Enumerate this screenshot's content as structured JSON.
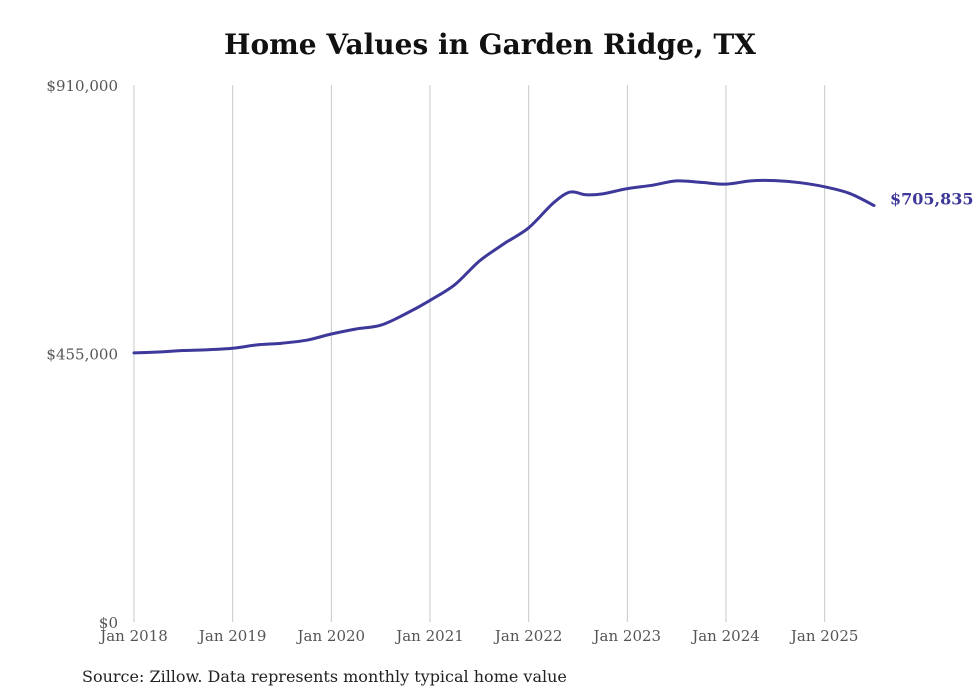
{
  "title": "Home Values in Garden Ridge, TX",
  "source": "Source: Zillow. Data represents monthly typical home value",
  "chart_data": {
    "type": "line",
    "title": "Home Values in Garden Ridge, TX",
    "xlabel": "",
    "ylabel": "",
    "grid": "vertical",
    "line_color": "#3d3899",
    "grid_color": "#c8c8c8",
    "ylim": [
      0,
      910000
    ],
    "yticks": [
      {
        "value": 0,
        "label": "$0"
      },
      {
        "value": 455000,
        "label": "$455,000"
      },
      {
        "value": 910000,
        "label": "$910,000"
      }
    ],
    "xlim": [
      2018.0,
      2025.5
    ],
    "xticks": [
      {
        "value": 2018,
        "label": "Jan 2018"
      },
      {
        "value": 2019,
        "label": "Jan 2019"
      },
      {
        "value": 2020,
        "label": "Jan 2020"
      },
      {
        "value": 2021,
        "label": "Jan 2021"
      },
      {
        "value": 2022,
        "label": "Jan 2022"
      },
      {
        "value": 2023,
        "label": "Jan 2023"
      },
      {
        "value": 2024,
        "label": "Jan 2024"
      },
      {
        "value": 2025,
        "label": "Jan 2025"
      }
    ],
    "series": [
      {
        "name": "",
        "points": [
          [
            2018.0,
            456000
          ],
          [
            2018.25,
            457500
          ],
          [
            2018.5,
            460000
          ],
          [
            2018.75,
            461500
          ],
          [
            2019.0,
            464000
          ],
          [
            2019.25,
            469500
          ],
          [
            2019.5,
            472500
          ],
          [
            2019.75,
            477500
          ],
          [
            2020.0,
            488000
          ],
          [
            2020.25,
            496500
          ],
          [
            2020.5,
            503000
          ],
          [
            2020.75,
            522000
          ],
          [
            2021.0,
            545000
          ],
          [
            2021.25,
            571500
          ],
          [
            2021.5,
            611500
          ],
          [
            2021.75,
            641000
          ],
          [
            2022.0,
            668000
          ],
          [
            2022.25,
            710000
          ],
          [
            2022.42,
            728500
          ],
          [
            2022.58,
            724000
          ],
          [
            2022.75,
            725500
          ],
          [
            2023.0,
            734500
          ],
          [
            2023.25,
            740000
          ],
          [
            2023.5,
            747500
          ],
          [
            2023.75,
            745000
          ],
          [
            2024.0,
            742000
          ],
          [
            2024.25,
            747500
          ],
          [
            2024.5,
            748000
          ],
          [
            2024.75,
            744500
          ],
          [
            2025.0,
            737500
          ],
          [
            2025.25,
            726500
          ],
          [
            2025.5,
            705835
          ]
        ]
      }
    ],
    "end_label": "$705,835"
  }
}
